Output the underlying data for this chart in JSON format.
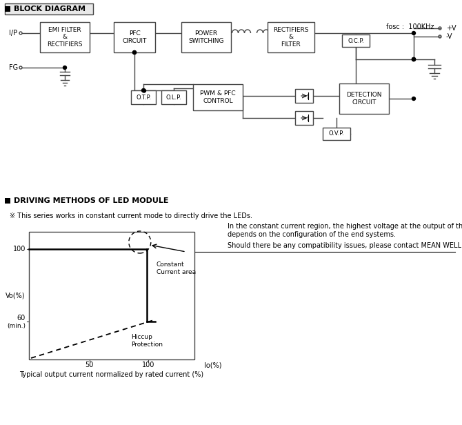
{
  "bg_color": "#ffffff",
  "title1": "BLOCK DIAGRAM",
  "title2": "DRIVING METHODS OF LED MODULE",
  "fosc_label": "fosc :  100KHz",
  "ip_label": "I/P",
  "fg_label": "FG",
  "pv_label": "+V",
  "mv_label": "-V",
  "block1": "EMI FILTER\n&\nRECTIFIERS",
  "block2": "PFC\nCIRCUIT",
  "block3": "POWER\nSWITCHING",
  "block4": "RECTIFIERS\n&\nFILTER",
  "block5": "O.T.P.",
  "block6": "O.L.P.",
  "block7": "PWM & PFC\nCONTROL",
  "block8": "DETECTION\nCIRCUIT",
  "block9": "O.C.P.",
  "block10": "O.V.P.",
  "note1": "※ This series works in constant current mode to directly drive the LEDs.",
  "note2_line1": "In the constant current region, the highest voltage at the output of the driver",
  "note2_line2": "depends on the configuration of the end systems.",
  "note2_line3": "Should there be any compatibility issues, please contact MEAN WELL.",
  "ylabel": "Vo(%)",
  "xlabel": "Io(%)",
  "label_constant": "Constant\nCurrent area",
  "label_hiccup": "Hiccup\nProtection",
  "caption": "Typical output current normalized by rated current (%)"
}
